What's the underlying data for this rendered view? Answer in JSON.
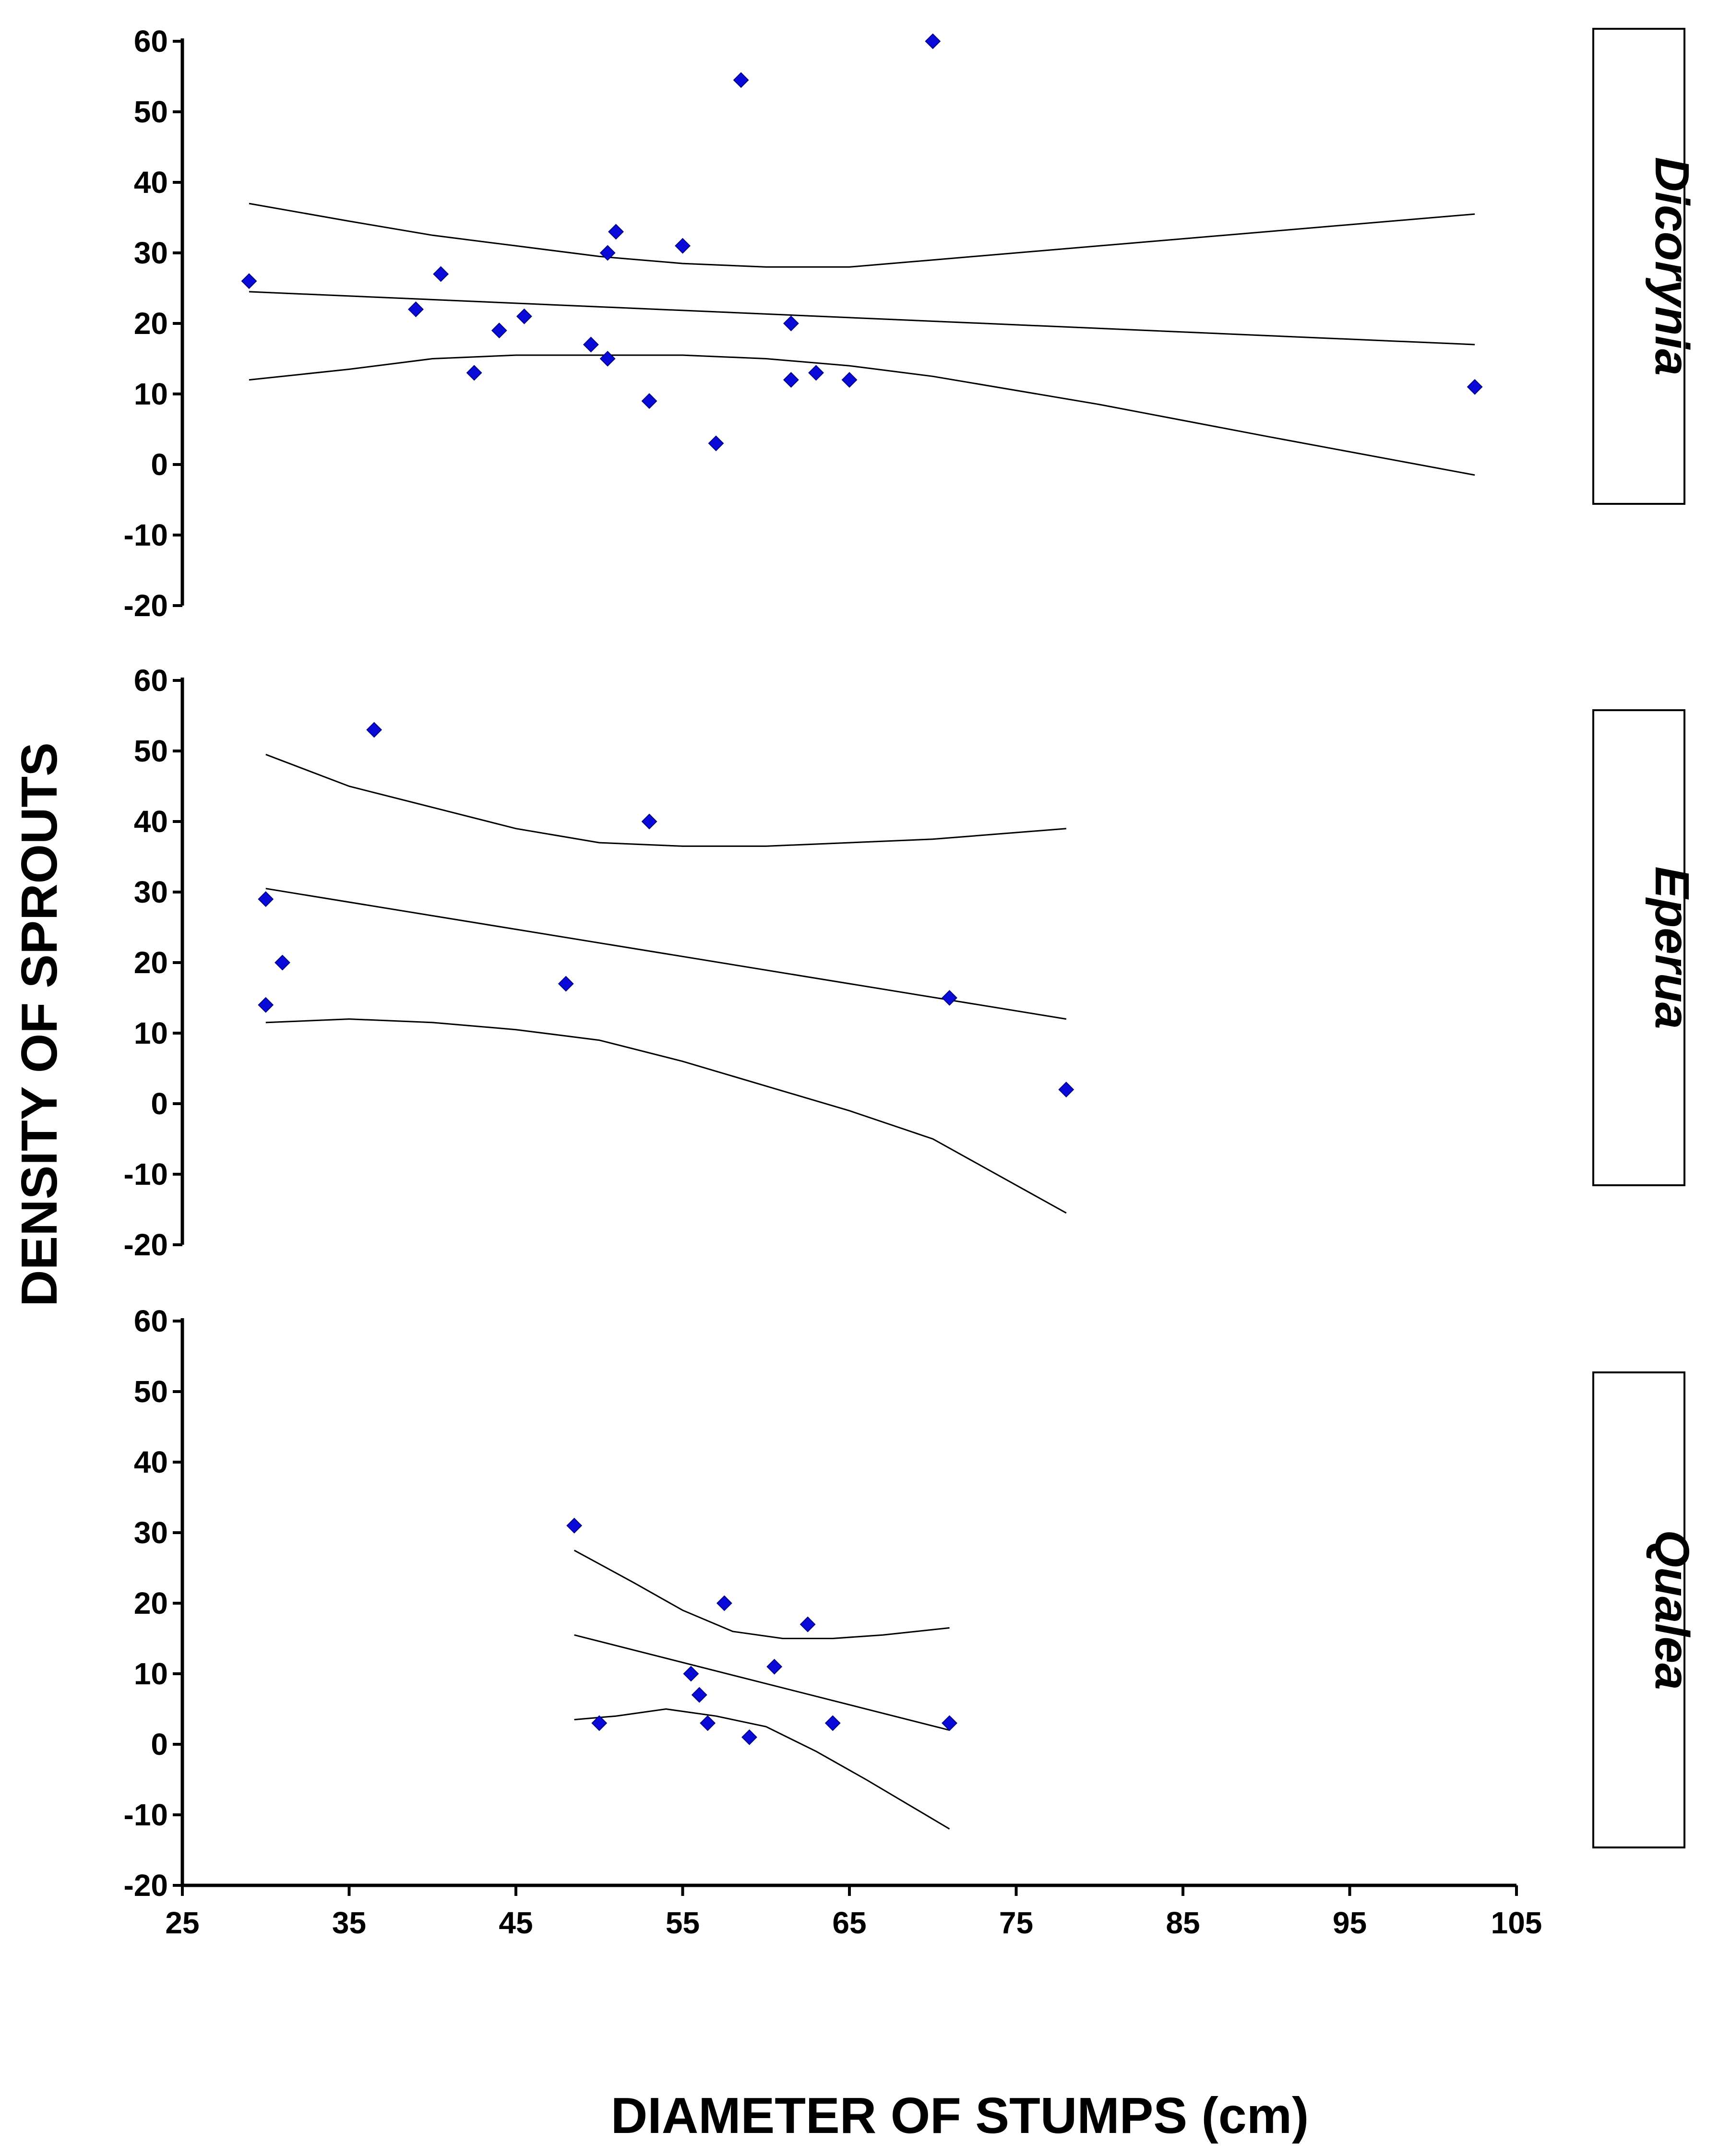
{
  "chart_data": {
    "type": "scatter",
    "xlabel": "DIAMETER OF STUMPS (cm)",
    "ylabel": "DENSITY OF SPROUTS",
    "xlim": [
      25,
      105
    ],
    "xticks": [
      "25",
      "35",
      "45",
      "55",
      "65",
      "75",
      "85",
      "95",
      "105"
    ],
    "ylim": [
      -20,
      60
    ],
    "yticks": [
      "60",
      "50",
      "40",
      "30",
      "20",
      "10",
      "0",
      "-10",
      "-20"
    ],
    "point_color": "#0a0ad8",
    "panels": [
      {
        "label": "Dicorynia",
        "points": [
          [
            29,
            26
          ],
          [
            39,
            22
          ],
          [
            40.5,
            27
          ],
          [
            42.5,
            13
          ],
          [
            44,
            19
          ],
          [
            45.5,
            21
          ],
          [
            49.5,
            17
          ],
          [
            50.5,
            30
          ],
          [
            50.5,
            15
          ],
          [
            51,
            33
          ],
          [
            53,
            9
          ],
          [
            55,
            31
          ],
          [
            57,
            3
          ],
          [
            58.5,
            54.5
          ],
          [
            61.5,
            20
          ],
          [
            61.5,
            12
          ],
          [
            63,
            13
          ],
          [
            65,
            12
          ],
          [
            70,
            60
          ],
          [
            102.5,
            11
          ]
        ],
        "fit": [
          [
            29,
            24.5
          ],
          [
            102.5,
            17
          ]
        ],
        "upper_band": [
          [
            29,
            37
          ],
          [
            35,
            34.5
          ],
          [
            40,
            32.5
          ],
          [
            45,
            31
          ],
          [
            50,
            29.5
          ],
          [
            55,
            28.5
          ],
          [
            60,
            28
          ],
          [
            65,
            28
          ],
          [
            70,
            29
          ],
          [
            80,
            31
          ],
          [
            90,
            33
          ],
          [
            102.5,
            35.5
          ]
        ],
        "lower_band": [
          [
            29,
            12
          ],
          [
            35,
            13.5
          ],
          [
            40,
            15
          ],
          [
            45,
            15.5
          ],
          [
            50,
            15.5
          ],
          [
            55,
            15.5
          ],
          [
            60,
            15
          ],
          [
            65,
            14
          ],
          [
            70,
            12.5
          ],
          [
            80,
            8.5
          ],
          [
            90,
            4
          ],
          [
            102.5,
            -1.5
          ]
        ]
      },
      {
        "label": "Eperua",
        "points": [
          [
            36.5,
            53
          ],
          [
            53,
            40
          ],
          [
            30,
            29
          ],
          [
            31,
            20
          ],
          [
            30,
            14
          ],
          [
            48,
            17
          ],
          [
            71,
            15
          ],
          [
            78,
            2
          ]
        ],
        "fit": [
          [
            30,
            30.5
          ],
          [
            78,
            12
          ]
        ],
        "upper_band": [
          [
            30,
            49.5
          ],
          [
            35,
            45
          ],
          [
            40,
            42
          ],
          [
            45,
            39
          ],
          [
            50,
            37
          ],
          [
            55,
            36.5
          ],
          [
            60,
            36.5
          ],
          [
            65,
            37
          ],
          [
            70,
            37.5
          ],
          [
            78,
            39
          ]
        ],
        "lower_band": [
          [
            30,
            11.5
          ],
          [
            35,
            12
          ],
          [
            40,
            11.5
          ],
          [
            45,
            10.5
          ],
          [
            50,
            9
          ],
          [
            55,
            6
          ],
          [
            60,
            2.5
          ],
          [
            65,
            -1
          ],
          [
            70,
            -5
          ],
          [
            78,
            -15.5
          ]
        ]
      },
      {
        "label": "Qualea",
        "points": [
          [
            48.5,
            31
          ],
          [
            50,
            3
          ],
          [
            55.5,
            10
          ],
          [
            56,
            7
          ],
          [
            56.5,
            3
          ],
          [
            57.5,
            20
          ],
          [
            59,
            1
          ],
          [
            60.5,
            11
          ],
          [
            62.5,
            17
          ],
          [
            64,
            3
          ],
          [
            71,
            3
          ]
        ],
        "fit": [
          [
            48.5,
            15.5
          ],
          [
            71,
            2
          ]
        ],
        "upper_band": [
          [
            48.5,
            27.5
          ],
          [
            52,
            23
          ],
          [
            55,
            19
          ],
          [
            58,
            16
          ],
          [
            61,
            15
          ],
          [
            64,
            15
          ],
          [
            67,
            15.5
          ],
          [
            71,
            16.5
          ]
        ],
        "lower_band": [
          [
            48.5,
            3.5
          ],
          [
            51,
            4
          ],
          [
            54,
            5
          ],
          [
            57,
            4
          ],
          [
            60,
            2.5
          ],
          [
            63,
            -1
          ],
          [
            66,
            -5
          ],
          [
            71,
            -12
          ]
        ]
      }
    ]
  }
}
